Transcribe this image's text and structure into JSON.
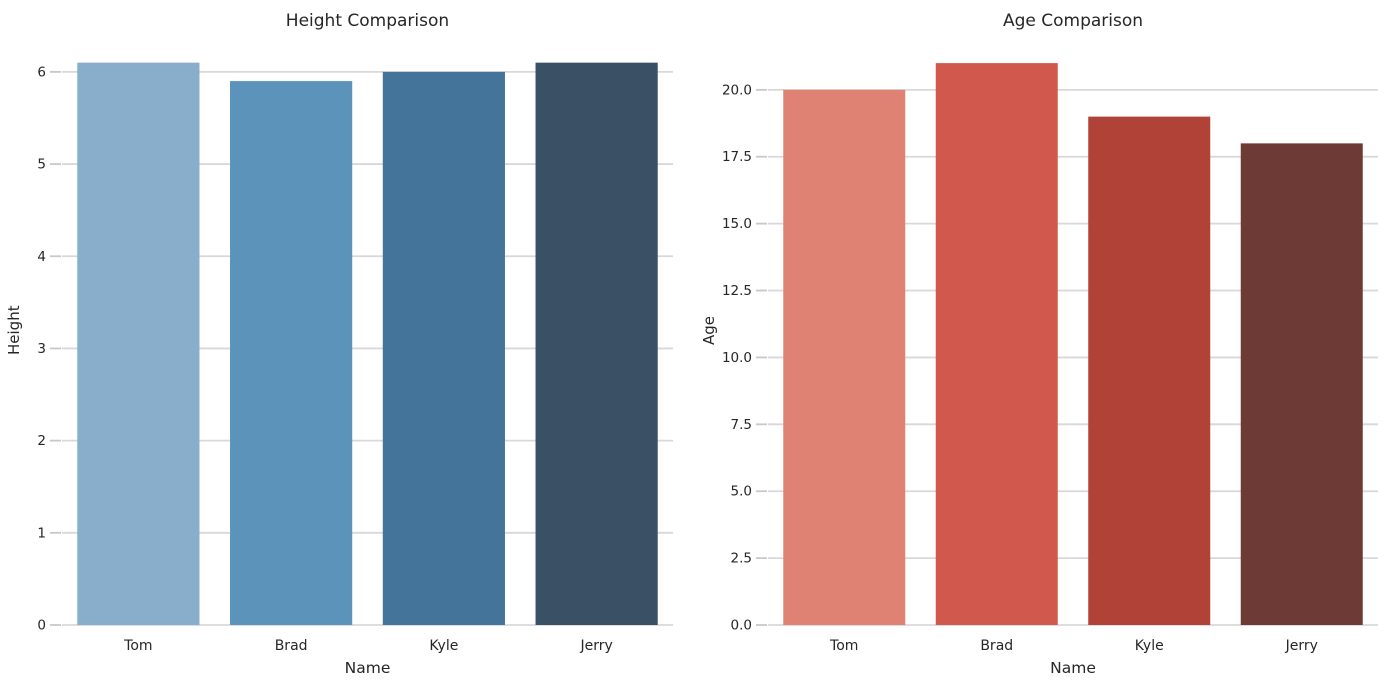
{
  "figure_background": "#ffffff",
  "styles": {
    "grid_color": "#d8d8d8",
    "tick_color": "#c8c8c8",
    "text_color": "#262626"
  },
  "chart_data": [
    {
      "type": "bar",
      "title": "Height Comparison",
      "xlabel": "Name",
      "ylabel": "Height",
      "categories": [
        "Tom",
        "Brad",
        "Kyle",
        "Jerry"
      ],
      "values": [
        6.1,
        5.9,
        6.0,
        6.1
      ],
      "ylim": [
        0,
        6.4
      ],
      "yticks": [
        0,
        1,
        2,
        3,
        4,
        5,
        6
      ],
      "ytick_labels": [
        "0",
        "1",
        "2",
        "3",
        "4",
        "5",
        "6"
      ],
      "bar_colors": [
        "#88aecb",
        "#5b93bb",
        "#45749b",
        "#3a5065"
      ],
      "grid": true,
      "legend": false
    },
    {
      "type": "bar",
      "title": "Age Comparison",
      "xlabel": "Name",
      "ylabel": "Age",
      "categories": [
        "Tom",
        "Brad",
        "Kyle",
        "Jerry"
      ],
      "values": [
        20,
        21,
        19,
        18
      ],
      "ylim": [
        0,
        22.05
      ],
      "yticks": [
        0,
        2.5,
        5,
        7.5,
        10,
        12.5,
        15,
        17.5,
        20
      ],
      "ytick_labels": [
        "0.0",
        "2.5",
        "5.0",
        "7.5",
        "10.0",
        "12.5",
        "15.0",
        "17.5",
        "20.0"
      ],
      "bar_colors": [
        "#df8273",
        "#d1584d",
        "#b04238",
        "#6e3a36"
      ],
      "grid": true,
      "legend": false
    }
  ]
}
